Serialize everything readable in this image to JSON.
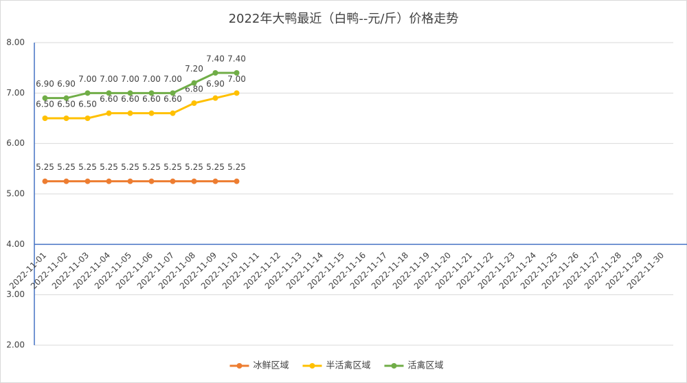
{
  "chart_data": {
    "type": "line",
    "title": "2022年大鸭最近（白鸭--元/斤）价格走势",
    "categories": [
      "2022-11-01",
      "2022-11-02",
      "2022-11-03",
      "2022-11-04",
      "2022-11-05",
      "2022-11-06",
      "2022-11-07",
      "2022-11-08",
      "2022-11-09",
      "2022-11-10",
      "2022-11-11",
      "2022-11-12",
      "2022-11-13",
      "2022-11-14",
      "2022-11-15",
      "2022-11-16",
      "2022-11-17",
      "2022-11-18",
      "2022-11-19",
      "2022-11-20",
      "2022-11-21",
      "2022-11-22",
      "2022-11-23",
      "2022-11-24",
      "2022-11-25",
      "2022-11-26",
      "2022-11-27",
      "2022-11-28",
      "2022-11-29",
      "2022-11-30"
    ],
    "series": [
      {
        "name": "冰鲜区域",
        "color": "#ED7D31",
        "values": [
          5.25,
          5.25,
          5.25,
          5.25,
          5.25,
          5.25,
          5.25,
          5.25,
          5.25,
          5.25,
          null,
          null,
          null,
          null,
          null,
          null,
          null,
          null,
          null,
          null,
          null,
          null,
          null,
          null,
          null,
          null,
          null,
          null,
          null,
          null
        ],
        "value_labels": [
          "5.25",
          "5.25",
          "5.25",
          "5.25",
          "5.25",
          "5.25",
          "5.25",
          "5.25",
          "5.25",
          "5.25",
          null,
          null,
          null,
          null,
          null,
          null,
          null,
          null,
          null,
          null,
          null,
          null,
          null,
          null,
          null,
          null,
          null,
          null,
          null,
          null
        ]
      },
      {
        "name": "半活禽区域",
        "color": "#FFC000",
        "values": [
          6.5,
          6.5,
          6.5,
          6.6,
          6.6,
          6.6,
          6.6,
          6.8,
          6.9,
          7,
          null,
          null,
          null,
          null,
          null,
          null,
          null,
          null,
          null,
          null,
          null,
          null,
          null,
          null,
          null,
          null,
          null,
          null,
          null,
          null
        ],
        "value_labels": [
          "6.50",
          "6.50",
          "6.50",
          "6.60",
          "6.60",
          "6.60",
          "6.60",
          "6.80",
          "6.90",
          "7.00",
          null,
          null,
          null,
          null,
          null,
          null,
          null,
          null,
          null,
          null,
          null,
          null,
          null,
          null,
          null,
          null,
          null,
          null,
          null,
          null
        ]
      },
      {
        "name": "活禽区域",
        "color": "#70AD47",
        "values": [
          6.9,
          6.9,
          7,
          7,
          7,
          7,
          7,
          7.2,
          7.4,
          7.4,
          null,
          null,
          null,
          null,
          null,
          null,
          null,
          null,
          null,
          null,
          null,
          null,
          null,
          null,
          null,
          null,
          null,
          null,
          null,
          null
        ],
        "value_labels": [
          "6.90",
          "6.90",
          "7.00",
          "7.00",
          "7.00",
          "7.00",
          "7.00",
          "7.20",
          "7.40",
          "7.40",
          null,
          null,
          null,
          null,
          null,
          null,
          null,
          null,
          null,
          null,
          null,
          null,
          null,
          null,
          null,
          null,
          null,
          null,
          null,
          null
        ]
      }
    ],
    "ylim": [
      2,
      8
    ],
    "yticks": [
      {
        "value": 2,
        "label": "2.00"
      },
      {
        "value": 3,
        "label": "3.00"
      },
      {
        "value": 4,
        "label": "4.00"
      },
      {
        "value": 5,
        "label": "5.00"
      },
      {
        "value": 6,
        "label": "6.00"
      },
      {
        "value": 7,
        "label": "7.00"
      },
      {
        "value": 8,
        "label": "8.00"
      }
    ],
    "xaxis_crosses_at": 4,
    "axis_color": "#4472C4",
    "grid": true,
    "legend": "bottom"
  }
}
